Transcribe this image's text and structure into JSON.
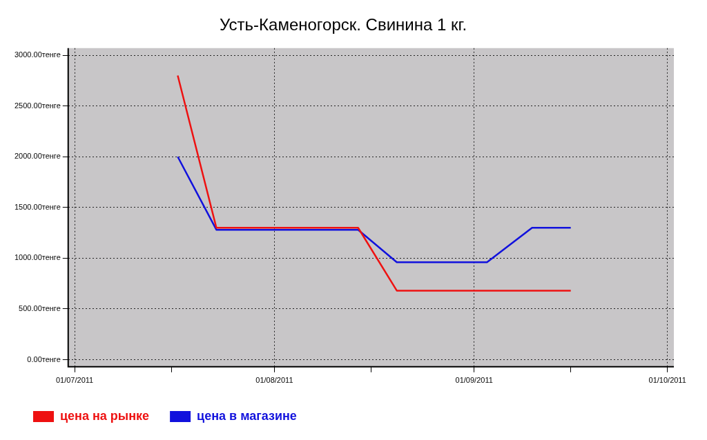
{
  "chart_data": {
    "type": "line",
    "title": "Усть-Каменогорск. Свинина 1 кг.",
    "x": [
      "2011-07-17",
      "2011-07-23",
      "2011-08-07",
      "2011-08-14",
      "2011-08-20",
      "2011-08-28",
      "2011-09-03",
      "2011-09-10",
      "2011-09-16"
    ],
    "series": [
      {
        "name": "цена на рынке",
        "color": "#ee1111",
        "values": [
          2800,
          1300,
          1300,
          1300,
          680,
          680,
          680,
          680,
          680
        ]
      },
      {
        "name": "цена в магазине",
        "color": "#1111dd",
        "values": [
          2000,
          1280,
          1280,
          1280,
          960,
          960,
          960,
          1300,
          1300
        ]
      }
    ],
    "xlim": [
      "2011-06-30",
      "2011-10-02"
    ],
    "xticks": [
      {
        "value": "2011-07-01",
        "label": "01/07/2011"
      },
      {
        "value": "2011-07-16",
        "label": null
      },
      {
        "value": "2011-08-01",
        "label": "01/08/2011"
      },
      {
        "value": "2011-08-16",
        "label": null
      },
      {
        "value": "2011-09-01",
        "label": "01/09/2011"
      },
      {
        "value": "2011-09-16",
        "label": null
      },
      {
        "value": "2011-10-01",
        "label": "01/10/2011"
      }
    ],
    "ylim": [
      -70,
      3070
    ],
    "yticks": [
      {
        "value": 0,
        "label": "0.00тенге"
      },
      {
        "value": 500,
        "label": "500.00тенге"
      },
      {
        "value": 1000,
        "label": "1000.00тенге"
      },
      {
        "value": 1500,
        "label": "1500.00тенге"
      },
      {
        "value": 2000,
        "label": "2000.00тенге"
      },
      {
        "value": 2500,
        "label": "2500.00тенге"
      },
      {
        "value": 3000,
        "label": "3000.00тенге"
      }
    ],
    "grid": true,
    "legend": "bottom left",
    "marker": "none",
    "line_style": "solid"
  }
}
